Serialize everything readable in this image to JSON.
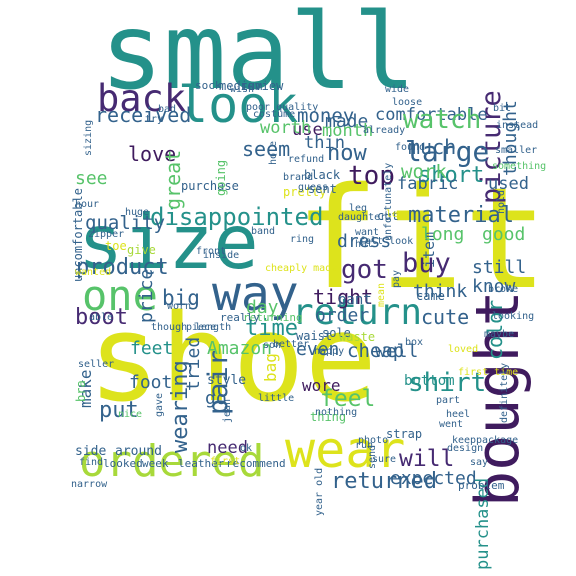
{
  "palette": {
    "background": "#ffffff",
    "yellow": "#dde31c",
    "lime": "#a8d93a",
    "green": "#57c36a",
    "teal": "#24918a",
    "blue": "#33628c",
    "purple": "#462a72",
    "dark": "#3f1b5e"
  },
  "words": [
    {
      "text": "small",
      "color": "#24918a"
    },
    {
      "text": "shoe",
      "color": "#dde31c"
    },
    {
      "text": "fit",
      "color": "#dde31c"
    },
    {
      "text": "size",
      "color": "#24918a"
    },
    {
      "text": "look",
      "color": "#24918a"
    },
    {
      "text": "back",
      "color": "#462a72"
    },
    {
      "text": "one",
      "color": "#57c36a"
    },
    {
      "text": "way",
      "color": "#33628c"
    },
    {
      "text": "return",
      "color": "#24918a"
    },
    {
      "text": "bought",
      "color": "#3f1b5e"
    },
    {
      "text": "wear",
      "color": "#dde31c"
    },
    {
      "text": "ordered",
      "color": "#a8d93a"
    },
    {
      "text": "disappointed",
      "color": "#24918a"
    },
    {
      "text": "money",
      "color": "#33628c"
    },
    {
      "text": "comfortable",
      "color": "#33628c"
    },
    {
      "text": "picture",
      "color": "#462a72"
    },
    {
      "text": "received",
      "color": "#33628c"
    },
    {
      "text": "made",
      "color": "#33628c"
    },
    {
      "text": "watch",
      "color": "#57c36a"
    },
    {
      "text": "much",
      "color": "#33628c"
    },
    {
      "text": "large",
      "color": "#33628c"
    },
    {
      "text": "short",
      "color": "#24918a"
    },
    {
      "text": "thought",
      "color": "#33628c"
    },
    {
      "text": "top",
      "color": "#3f1b5e"
    },
    {
      "text": "now",
      "color": "#33628c"
    },
    {
      "text": "material",
      "color": "#33628c"
    },
    {
      "text": "item",
      "color": "#33628c"
    },
    {
      "text": "dress",
      "color": "#33628c"
    },
    {
      "text": "got",
      "color": "#462a72"
    },
    {
      "text": "buy",
      "color": "#462a72"
    },
    {
      "text": "long",
      "color": "#57c36a"
    },
    {
      "text": "good",
      "color": "#57c36a"
    },
    {
      "text": "product",
      "color": "#33628c"
    },
    {
      "text": "big",
      "color": "#33628c"
    },
    {
      "text": "boot",
      "color": "#462a72"
    },
    {
      "text": "time",
      "color": "#24918a"
    },
    {
      "text": "cute",
      "color": "#33628c"
    },
    {
      "text": "still",
      "color": "#33628c"
    },
    {
      "text": "know",
      "color": "#33628c"
    },
    {
      "text": "color",
      "color": "#24918a"
    },
    {
      "text": "shirt",
      "color": "#24918a"
    },
    {
      "text": "will",
      "color": "#462a72"
    },
    {
      "text": "returned",
      "color": "#33628c"
    },
    {
      "text": "pair",
      "color": "#33628c"
    },
    {
      "text": "wearing",
      "color": "#33628c"
    },
    {
      "text": "tight",
      "color": "#3f1b5e"
    },
    {
      "text": "order",
      "color": "#33628c"
    },
    {
      "text": "feel",
      "color": "#57c36a"
    },
    {
      "text": "cheap",
      "color": "#33628c"
    },
    {
      "text": "wore",
      "color": "#3f1b5e"
    },
    {
      "text": "put",
      "color": "#33628c"
    },
    {
      "text": "expected",
      "color": "#33628c"
    },
    {
      "text": "purchased",
      "color": "#24918a"
    },
    {
      "text": "quality",
      "color": "#33628c"
    },
    {
      "text": "used",
      "color": "#33628c"
    },
    {
      "text": "fabric",
      "color": "#33628c"
    },
    {
      "text": "work",
      "color": "#57c36a"
    },
    {
      "text": "love",
      "color": "#3f1b5e"
    },
    {
      "text": "see",
      "color": "#57c36a"
    },
    {
      "text": "seem",
      "color": "#33628c"
    },
    {
      "text": "thin",
      "color": "#33628c"
    },
    {
      "text": "use",
      "color": "#3f1b5e"
    },
    {
      "text": "month",
      "color": "#57c36a"
    },
    {
      "text": "worth",
      "color": "#57c36a"
    },
    {
      "text": "Amazon",
      "color": "#57c36a"
    },
    {
      "text": "feet",
      "color": "#24918a"
    },
    {
      "text": "even",
      "color": "#33628c"
    },
    {
      "text": "need",
      "color": "#462a72"
    },
    {
      "text": "foot",
      "color": "#33628c"
    },
    {
      "text": "tried",
      "color": "#33628c"
    },
    {
      "text": "bag",
      "color": "#dde31c"
    },
    {
      "text": "day",
      "color": "#57c36a"
    },
    {
      "text": "price",
      "color": "#33628c"
    },
    {
      "text": "pant",
      "color": "#33628c"
    },
    {
      "text": "well",
      "color": "#33628c"
    },
    {
      "text": "think",
      "color": "#33628c"
    },
    {
      "text": "make",
      "color": "#33628c"
    },
    {
      "text": "go",
      "color": "#33628c"
    },
    {
      "text": "style",
      "color": "#33628c"
    },
    {
      "text": "bottom",
      "color": "#24918a"
    },
    {
      "text": "around",
      "color": "#33628c"
    },
    {
      "text": "side",
      "color": "#33628c"
    },
    {
      "text": "week",
      "color": "#33628c"
    },
    {
      "text": "looked",
      "color": "#33628c"
    },
    {
      "text": "leather",
      "color": "#33628c"
    },
    {
      "text": "recommend",
      "color": "#33628c"
    },
    {
      "text": "problem",
      "color": "#33628c"
    },
    {
      "text": "great",
      "color": "#57c36a"
    },
    {
      "text": "review",
      "color": "#33628c"
    },
    {
      "text": "medium",
      "color": "#33628c"
    },
    {
      "text": "sock",
      "color": "#33628c"
    },
    {
      "text": "purchase",
      "color": "#33628c"
    },
    {
      "text": "going",
      "color": "#57c36a"
    },
    {
      "text": "uncomfortable",
      "color": "#33628c"
    },
    {
      "text": "cut",
      "color": "#33628c"
    },
    {
      "text": "came",
      "color": "#33628c"
    },
    {
      "text": "returning",
      "color": "#57c36a"
    },
    {
      "text": "really",
      "color": "#33628c"
    },
    {
      "text": "strap",
      "color": "#33628c"
    },
    {
      "text": "thing",
      "color": "#57c36a"
    },
    {
      "text": "waist",
      "color": "#33628c"
    },
    {
      "text": "sole",
      "color": "#33628c"
    },
    {
      "text": "waste",
      "color": "#a8d93a"
    },
    {
      "text": "toe",
      "color": "#dde31c"
    },
    {
      "text": "give",
      "color": "#a8d93a"
    },
    {
      "text": "bra",
      "color": "#57c36a"
    },
    {
      "text": "nice",
      "color": "#57c36a"
    },
    {
      "text": "pretty",
      "color": "#dde31c"
    },
    {
      "text": "black",
      "color": "#33628c"
    },
    {
      "text": "sent",
      "color": "#33628c"
    },
    {
      "text": "bad",
      "color": "#33628c"
    },
    {
      "text": "try",
      "color": "#33628c"
    },
    {
      "text": "wish",
      "color": "#33628c"
    },
    {
      "text": "poor quality",
      "color": "#33628c"
    },
    {
      "text": "wide",
      "color": "#33628c"
    },
    {
      "text": "loose",
      "color": "#33628c"
    },
    {
      "text": "brand",
      "color": "#33628c"
    },
    {
      "text": "guess",
      "color": "#33628c"
    },
    {
      "text": "hat",
      "color": "#33628c"
    },
    {
      "text": "little",
      "color": "#33628c"
    },
    {
      "text": "son",
      "color": "#33628c"
    },
    {
      "text": "happy",
      "color": "#33628c"
    },
    {
      "text": "worn",
      "color": "#33628c"
    },
    {
      "text": "able",
      "color": "#33628c"
    },
    {
      "text": "seller",
      "color": "#33628c"
    },
    {
      "text": "wanted",
      "color": "#dde31c"
    },
    {
      "text": "zipper",
      "color": "#33628c"
    },
    {
      "text": "hour",
      "color": "#33628c"
    },
    {
      "text": "length",
      "color": "#33628c"
    },
    {
      "text": "ring",
      "color": "#33628c"
    },
    {
      "text": "better",
      "color": "#33628c"
    },
    {
      "text": "piece",
      "color": "#33628c"
    },
    {
      "text": "though",
      "color": "#33628c"
    },
    {
      "text": "box",
      "color": "#33628c"
    },
    {
      "text": "loved",
      "color": "#dde31c"
    },
    {
      "text": "first time",
      "color": "#dde31c"
    },
    {
      "text": "broke",
      "color": "#33628c"
    },
    {
      "text": "looking",
      "color": "#33628c"
    },
    {
      "text": "maybe",
      "color": "#33628c"
    },
    {
      "text": "part",
      "color": "#33628c"
    },
    {
      "text": "went",
      "color": "#33628c"
    },
    {
      "text": "heel",
      "color": "#33628c"
    },
    {
      "text": "design",
      "color": "#33628c"
    },
    {
      "text": "keep",
      "color": "#33628c"
    },
    {
      "text": "say",
      "color": "#33628c"
    },
    {
      "text": "photo",
      "color": "#33628c"
    },
    {
      "text": "sure",
      "color": "#33628c"
    },
    {
      "text": "send",
      "color": "#33628c"
    },
    {
      "text": "run",
      "color": "#33628c"
    },
    {
      "text": "nothing",
      "color": "#33628c"
    },
    {
      "text": "want",
      "color": "#33628c"
    },
    {
      "text": "felt look",
      "color": "#33628c"
    },
    {
      "text": "find",
      "color": "#33628c"
    },
    {
      "text": "narrow",
      "color": "#33628c"
    },
    {
      "text": "ok",
      "color": "#33628c"
    },
    {
      "text": "jean",
      "color": "#33628c"
    },
    {
      "text": "first",
      "color": "#dde31c"
    },
    {
      "text": "cheaply made",
      "color": "#dde31c"
    },
    {
      "text": "inside",
      "color": "#33628c"
    },
    {
      "text": "front",
      "color": "#33628c"
    },
    {
      "text": "pay",
      "color": "#33628c"
    },
    {
      "text": "hold",
      "color": "#33628c"
    },
    {
      "text": "unfortunately",
      "color": "#33628c"
    },
    {
      "text": "already",
      "color": "#33628c"
    },
    {
      "text": "daughter",
      "color": "#33628c"
    },
    {
      "text": "smaller",
      "color": "#33628c"
    },
    {
      "text": "found",
      "color": "#33628c"
    },
    {
      "text": "refund",
      "color": "#33628c"
    },
    {
      "text": "costume",
      "color": "#33628c"
    },
    {
      "text": "hole",
      "color": "#33628c"
    },
    {
      "text": "sizing",
      "color": "#33628c"
    },
    {
      "text": "huge",
      "color": "#33628c"
    },
    {
      "text": "something",
      "color": "#57c36a"
    },
    {
      "text": "instead",
      "color": "#33628c"
    },
    {
      "text": "bit",
      "color": "#33628c"
    },
    {
      "text": "band",
      "color": "#33628c"
    },
    {
      "text": "mean",
      "color": "#dde31c"
    },
    {
      "text": "gave",
      "color": "#33628c"
    },
    {
      "text": "less",
      "color": "#dde31c"
    },
    {
      "text": "year old",
      "color": "#33628c"
    },
    {
      "text": "definitely",
      "color": "#33628c"
    },
    {
      "text": "package",
      "color": "#33628c"
    },
    {
      "text": "leg",
      "color": "#33628c"
    },
    {
      "text": "company",
      "color": "#33628c"
    },
    {
      "text": "never",
      "color": "#33628c"
    },
    {
      "text": "fine",
      "color": "#33628c"
    }
  ]
}
